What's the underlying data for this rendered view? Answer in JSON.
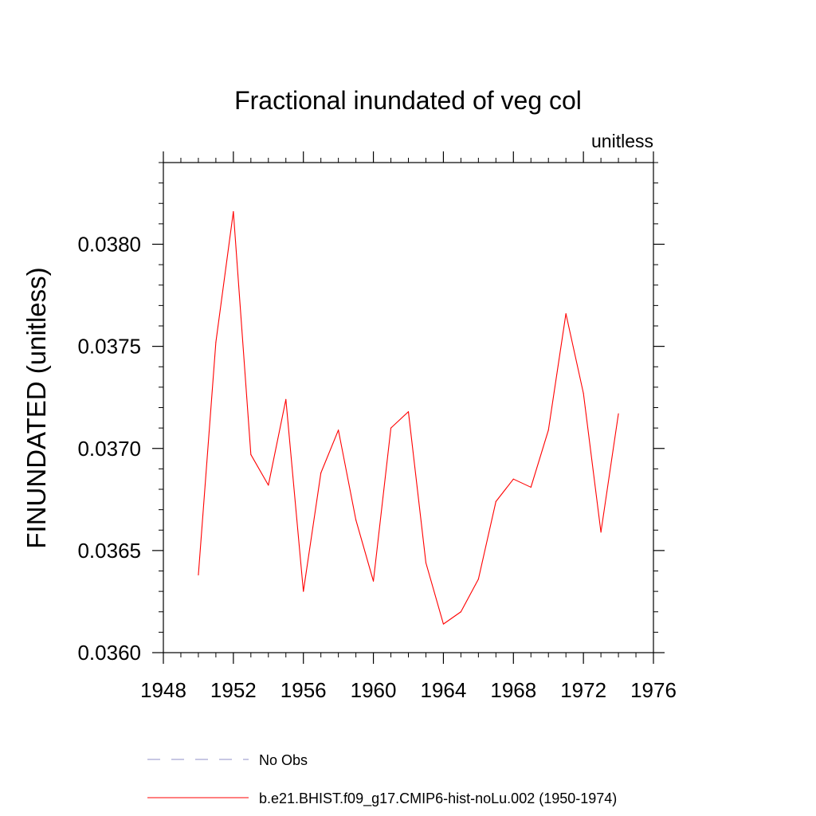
{
  "chart_data": {
    "type": "line",
    "title": "Fractional inundated of veg col",
    "units_label": "unitless",
    "ylabel": "FINUNDATED  (unitless)",
    "xlabel": "",
    "xlim": [
      1948,
      1976
    ],
    "ylim": [
      0.036,
      0.0384
    ],
    "x_ticks": [
      1948,
      1952,
      1956,
      1960,
      1964,
      1968,
      1972,
      1976
    ],
    "x_tick_labels": [
      "1948",
      "1952",
      "1956",
      "1960",
      "1964",
      "1968",
      "1972",
      "1976"
    ],
    "y_ticks": [
      0.036,
      0.0365,
      0.037,
      0.0375,
      0.038
    ],
    "y_tick_labels": [
      "0.0360",
      "0.0365",
      "0.0370",
      "0.0375",
      "0.0380"
    ],
    "legend": [
      {
        "label": "No Obs",
        "style": "dashed",
        "color": "#8f8fc8"
      },
      {
        "label": "b.e21.BHIST.f09_g17.CMIP6-hist-noLu.002 (1950-1974)",
        "style": "solid",
        "color": "#ff0000"
      }
    ],
    "series": [
      {
        "name": "b.e21.BHIST.f09_g17.CMIP6-hist-noLu.002 (1950-1974)",
        "color": "#ff0000",
        "x": [
          1950,
          1951,
          1952,
          1953,
          1954,
          1955,
          1956,
          1957,
          1958,
          1959,
          1960,
          1961,
          1962,
          1963,
          1964,
          1965,
          1966,
          1967,
          1968,
          1969,
          1970,
          1971,
          1972,
          1973,
          1974
        ],
        "values": [
          0.03638,
          0.03752,
          0.03816,
          0.03697,
          0.03682,
          0.03724,
          0.0363,
          0.03688,
          0.03709,
          0.03665,
          0.03635,
          0.0371,
          0.03718,
          0.03644,
          0.03614,
          0.0362,
          0.03636,
          0.03674,
          0.03685,
          0.03681,
          0.03709,
          0.03766,
          0.03727,
          0.03659,
          0.03717
        ]
      }
    ]
  }
}
